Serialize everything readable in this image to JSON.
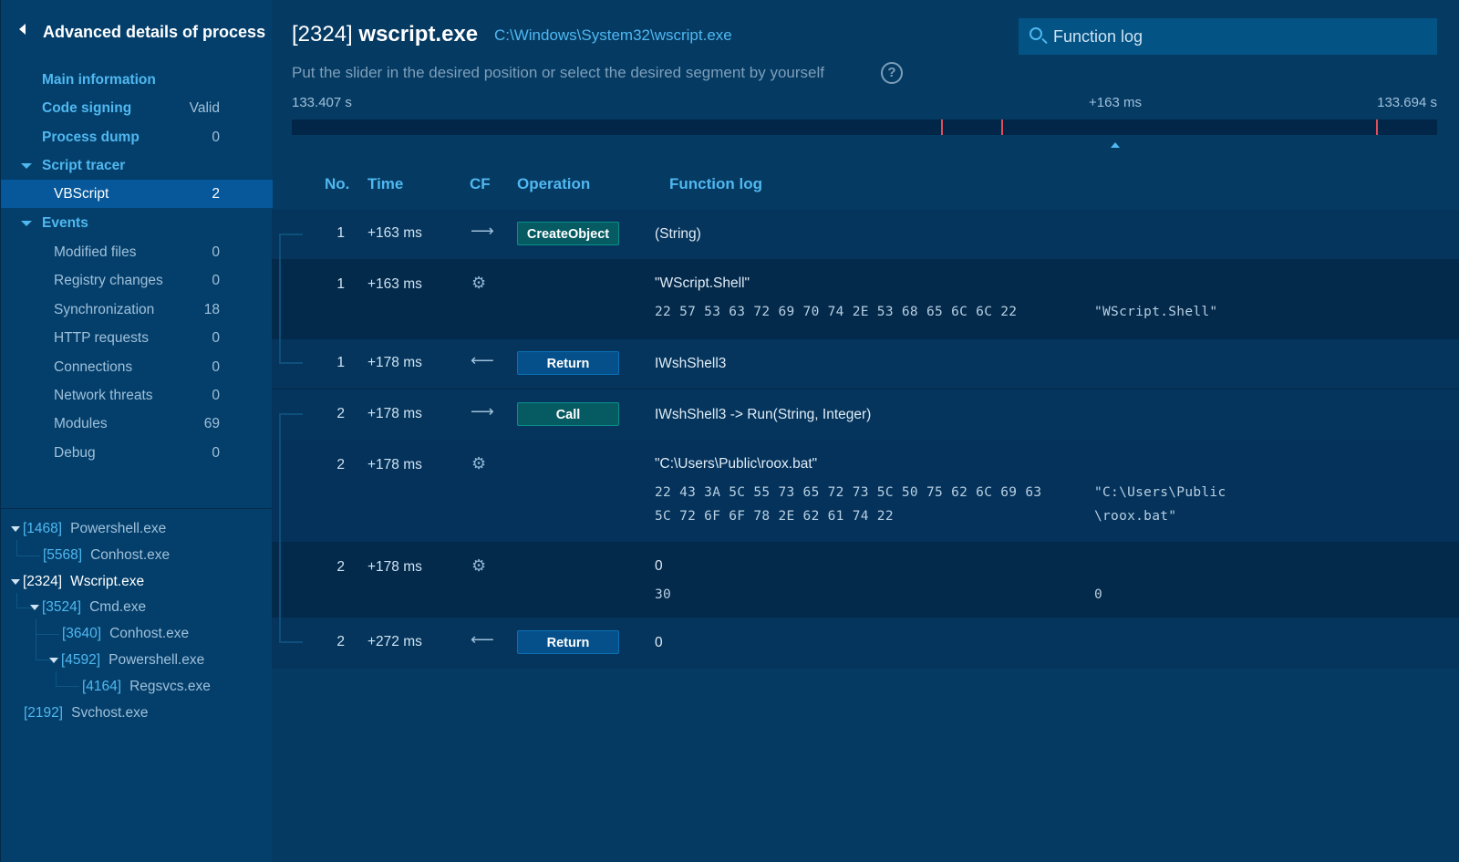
{
  "sidebar": {
    "title": "Advanced details of process",
    "nav": [
      {
        "label": "Main information",
        "count": ""
      },
      {
        "label": "Code signing",
        "count": "Valid"
      },
      {
        "label": "Process dump",
        "count": "0"
      },
      {
        "label": "Script tracer",
        "count": ""
      },
      {
        "label": "VBScript",
        "count": "2"
      },
      {
        "label": "Events",
        "count": ""
      },
      {
        "label": "Modified files",
        "count": "0"
      },
      {
        "label": "Registry changes",
        "count": "0"
      },
      {
        "label": "Synchronization",
        "count": "18"
      },
      {
        "label": "HTTP requests",
        "count": "0"
      },
      {
        "label": "Connections",
        "count": "0"
      },
      {
        "label": "Network threats",
        "count": "0"
      },
      {
        "label": "Modules",
        "count": "69"
      },
      {
        "label": "Debug",
        "count": "0"
      }
    ],
    "tree": [
      {
        "pid": "[1468]",
        "name": "Powershell.exe"
      },
      {
        "pid": "[5568]",
        "name": "Conhost.exe"
      },
      {
        "pid": "[2324]",
        "name": "Wscript.exe"
      },
      {
        "pid": "[3524]",
        "name": "Cmd.exe"
      },
      {
        "pid": "[3640]",
        "name": "Conhost.exe"
      },
      {
        "pid": "[4592]",
        "name": "Powershell.exe"
      },
      {
        "pid": "[4164]",
        "name": "Regsvcs.exe"
      },
      {
        "pid": "[2192]",
        "name": "Svchost.exe"
      }
    ]
  },
  "header": {
    "pid": "[2324]",
    "name": "wscript.exe",
    "path": "C:\\Windows\\System32\\wscript.exe",
    "hint": "Put the slider in the desired position or select the desired segment by yourself",
    "help": "?",
    "search_value": "Function log"
  },
  "timeline": {
    "start": "133.407 s",
    "cursor": "+163 ms",
    "end": "133.694 s",
    "accent": "#e0505a"
  },
  "table": {
    "headers": {
      "no": "No.",
      "time": "Time",
      "cf": "CF",
      "operation": "Operation",
      "log": "Function log"
    },
    "rows": [
      {
        "no": "1",
        "time": "+163 ms",
        "cf": "arrow-right-icon",
        "op": "CreateObject",
        "log": "(String)"
      },
      {
        "no": "1",
        "time": "+163 ms",
        "cf": "gear-icon",
        "log": "\"WScript.Shell\"",
        "hex": "22 57 53 63 72 69 70 74 2E 53 68 65 6C 6C 22",
        "ascii": "\"WScript.Shell\""
      },
      {
        "no": "1",
        "time": "+178 ms",
        "cf": "arrow-left-icon",
        "op": "Return",
        "log": "IWshShell3"
      },
      {
        "no": "2",
        "time": "+178 ms",
        "cf": "arrow-right-icon",
        "op": "Call",
        "log": "IWshShell3 -> Run(String, Integer)"
      },
      {
        "no": "2",
        "time": "+178 ms",
        "cf": "gear-icon",
        "log": "\"C:\\Users\\Public\\roox.bat\"",
        "hex": "22 43 3A 5C 55 73 65 72 73 5C 50 75 62 6C 69 63",
        "hex2": "5C 72 6F 6F 78 2E 62 61 74 22",
        "ascii": "\"C:\\Users\\Public",
        "ascii2": "\\roox.bat\""
      },
      {
        "no": "2",
        "time": "+178 ms",
        "cf": "gear-icon",
        "log": "0",
        "hex": "30",
        "ascii": "0"
      },
      {
        "no": "2",
        "time": "+272 ms",
        "cf": "arrow-left-icon",
        "op": "Return",
        "log": "0"
      }
    ]
  }
}
